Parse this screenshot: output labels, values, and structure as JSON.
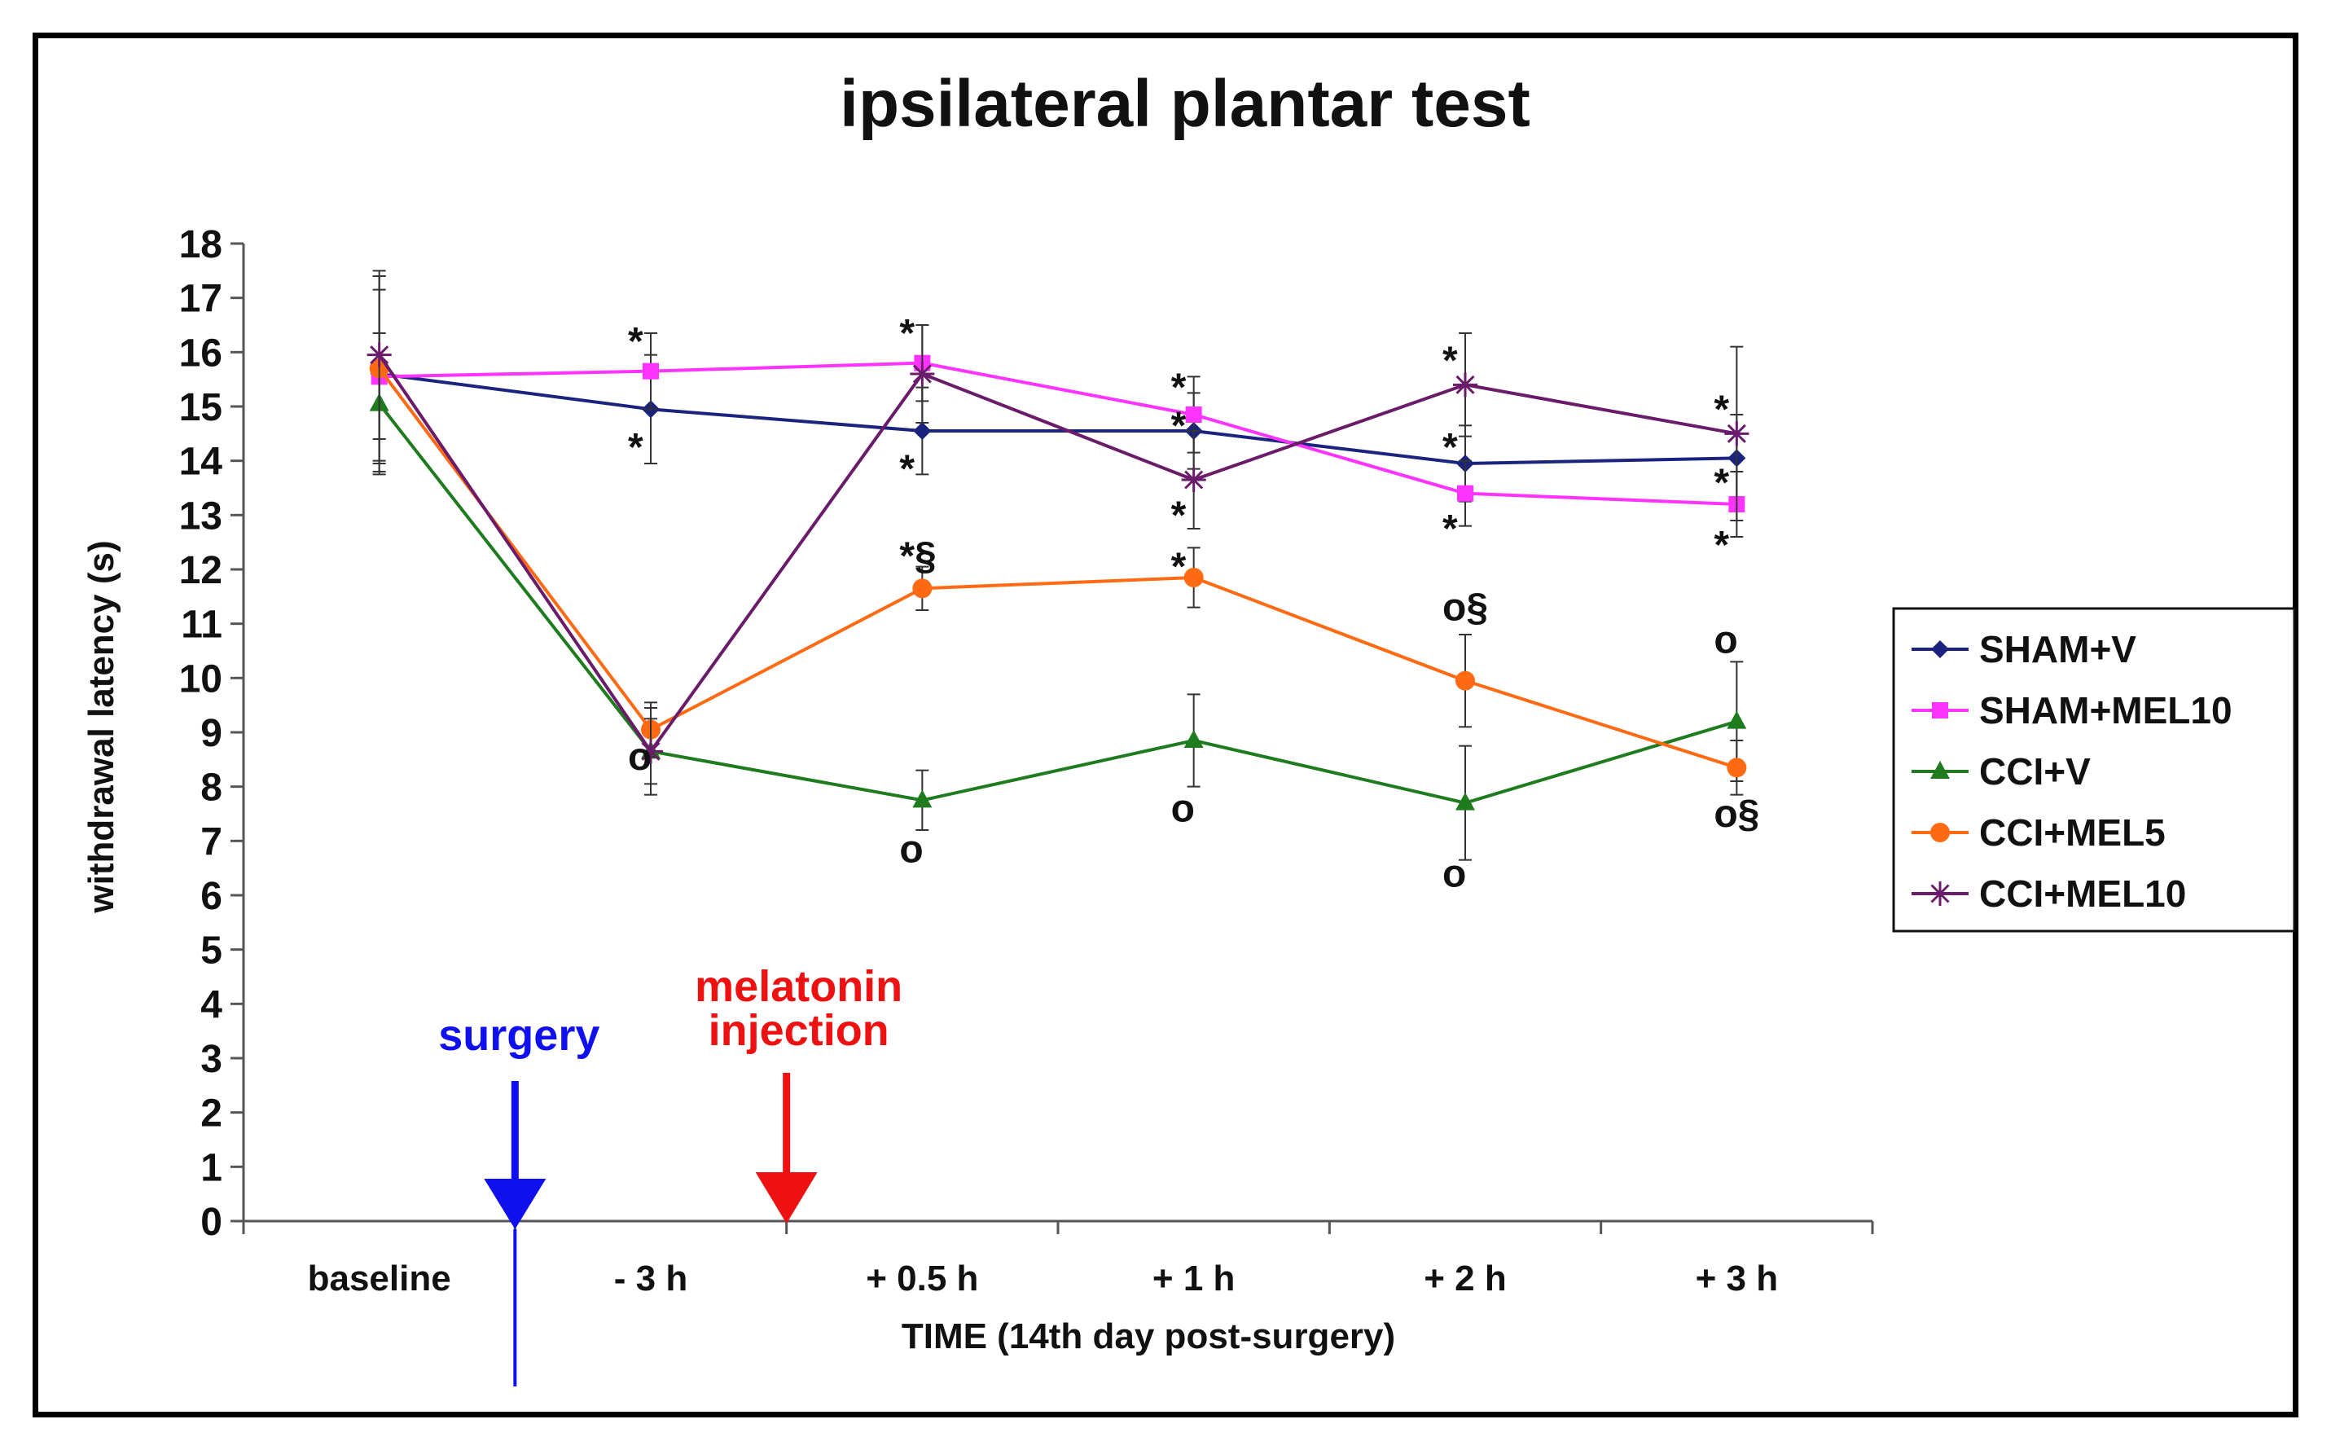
{
  "chart_data": {
    "type": "line",
    "title": "ipsilateral plantar test",
    "xlabel": "TIME (14th day post-surgery)",
    "ylabel": "withdrawal latency (s)",
    "categories": [
      "baseline",
      "- 3 h",
      "+ 0.5 h",
      "+ 1 h",
      "+ 2 h",
      "+ 3 h"
    ],
    "ylim": [
      0,
      18
    ],
    "yticks": [
      "0",
      "1",
      "2",
      "3",
      "4",
      "5",
      "6",
      "7",
      "8",
      "9",
      "10",
      "11",
      "12",
      "13",
      "14",
      "15",
      "16",
      "17",
      "18"
    ],
    "legend_position": "right",
    "series": [
      {
        "name": "SHAM+V",
        "color": "#1a237e",
        "marker": "diamond",
        "values": [
          15.6,
          14.95,
          14.55,
          14.55,
          13.95,
          14.05
        ],
        "errors": [
          1.8,
          1.0,
          0.8,
          0.7,
          0.7,
          0.8
        ]
      },
      {
        "name": "SHAM+MEL10",
        "color": "#ff33ff",
        "marker": "square",
        "values": [
          15.55,
          15.65,
          15.8,
          14.85,
          13.4,
          13.2
        ],
        "errors": [
          1.6,
          0.7,
          0.7,
          0.7,
          0.6,
          0.6
        ]
      },
      {
        "name": "CCI+V",
        "color": "#1e7b1e",
        "marker": "triangle",
        "values": [
          15.05,
          8.65,
          7.75,
          8.85,
          7.7,
          9.2
        ],
        "errors": [
          1.3,
          0.8,
          0.55,
          0.85,
          1.05,
          1.1
        ]
      },
      {
        "name": "CCI+MEL5",
        "color": "#ff6a13",
        "marker": "circle",
        "values": [
          15.7,
          9.05,
          11.65,
          11.85,
          9.95,
          8.35
        ],
        "errors": [
          1.7,
          0.5,
          0.4,
          0.55,
          0.85,
          0.5
        ]
      },
      {
        "name": "CCI+MEL10",
        "color": "#6a1b6a",
        "marker": "star",
        "values": [
          15.95,
          8.65,
          15.6,
          13.65,
          15.4,
          14.5
        ],
        "errors": [
          1.55,
          0.6,
          0.9,
          0.9,
          0.95,
          1.6
        ]
      }
    ],
    "annotations": [
      {
        "text": "*",
        "category": 1,
        "value": 16.2
      },
      {
        "text": "*",
        "category": 1,
        "value": 14.25
      },
      {
        "text": "o",
        "category": 1,
        "value": 8.55
      },
      {
        "text": "*",
        "category": 2,
        "value": 16.35
      },
      {
        "text": "*",
        "category": 2,
        "value": 13.85
      },
      {
        "text": "*§",
        "category": 2,
        "value": 12.25
      },
      {
        "text": "o",
        "category": 2,
        "value": 6.85
      },
      {
        "text": "*",
        "category": 3,
        "value": 15.35
      },
      {
        "text": "*",
        "category": 3,
        "value": 14.65
      },
      {
        "text": "*",
        "category": 3,
        "value": 13.0
      },
      {
        "text": "*",
        "category": 3,
        "value": 12.05
      },
      {
        "text": "o",
        "category": 3,
        "value": 7.6
      },
      {
        "text": "*",
        "category": 4,
        "value": 15.85
      },
      {
        "text": "*",
        "category": 4,
        "value": 14.25
      },
      {
        "text": "*",
        "category": 4,
        "value": 12.75
      },
      {
        "text": "o§",
        "category": 4,
        "value": 11.3
      },
      {
        "text": "o",
        "category": 4,
        "value": 6.4
      },
      {
        "text": "*",
        "category": 5,
        "value": 14.95
      },
      {
        "text": "*",
        "category": 5,
        "value": 13.6
      },
      {
        "text": "*",
        "category": 5,
        "value": 12.45
      },
      {
        "text": "o",
        "category": 5,
        "value": 10.7
      },
      {
        "text": "o§",
        "category": 5,
        "value": 7.5
      }
    ],
    "events": [
      {
        "label": "surgery",
        "color": "#1010ee"
      },
      {
        "label_lines": [
          "melatonin",
          "injection"
        ],
        "color": "#ee1111"
      }
    ]
  }
}
